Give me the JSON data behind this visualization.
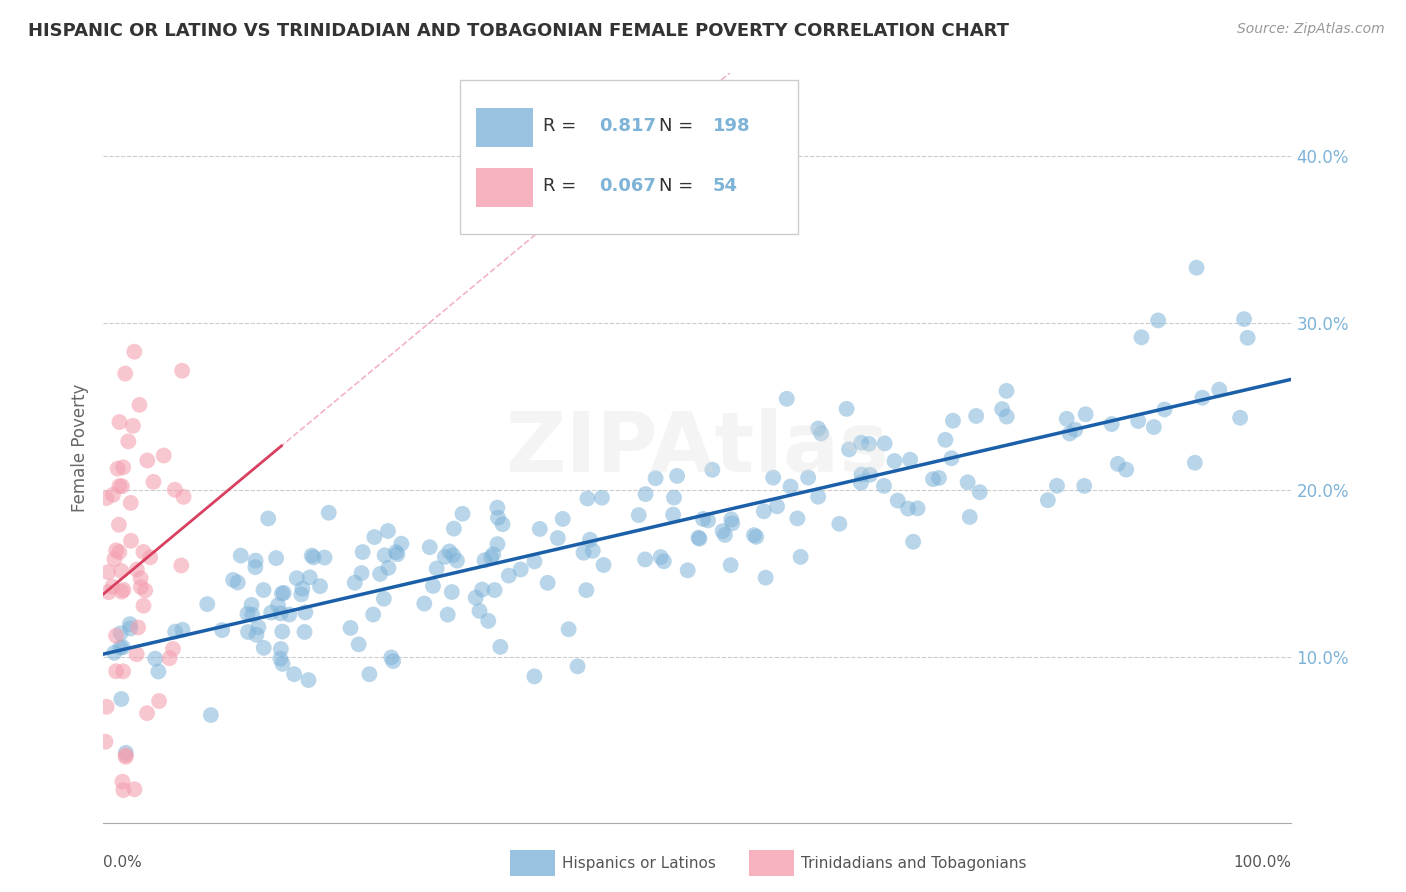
{
  "title": "HISPANIC OR LATINO VS TRINIDADIAN AND TOBAGONIAN FEMALE POVERTY CORRELATION CHART",
  "source": "Source: ZipAtlas.com",
  "ylabel": "Female Poverty",
  "R_blue": 0.817,
  "N_blue": 198,
  "R_pink": 0.067,
  "N_pink": 54,
  "blue_color": "#7EB3D8",
  "pink_color": "#F4A0B0",
  "trend_blue": "#1A5FA8",
  "trend_pink": "#D94060",
  "trend_pink_dashed": "#F0A0B8",
  "watermark": "ZIPAtlas",
  "xlim": [
    0.0,
    1.0
  ],
  "ylim": [
    0.0,
    0.45
  ],
  "y_ticks_right": [
    0.1,
    0.2,
    0.3,
    0.4
  ],
  "legend_labels": [
    "Hispanics or Latinos",
    "Trinidadians and Tobagonians"
  ],
  "background_color": "#FFFFFF",
  "seed": 7
}
